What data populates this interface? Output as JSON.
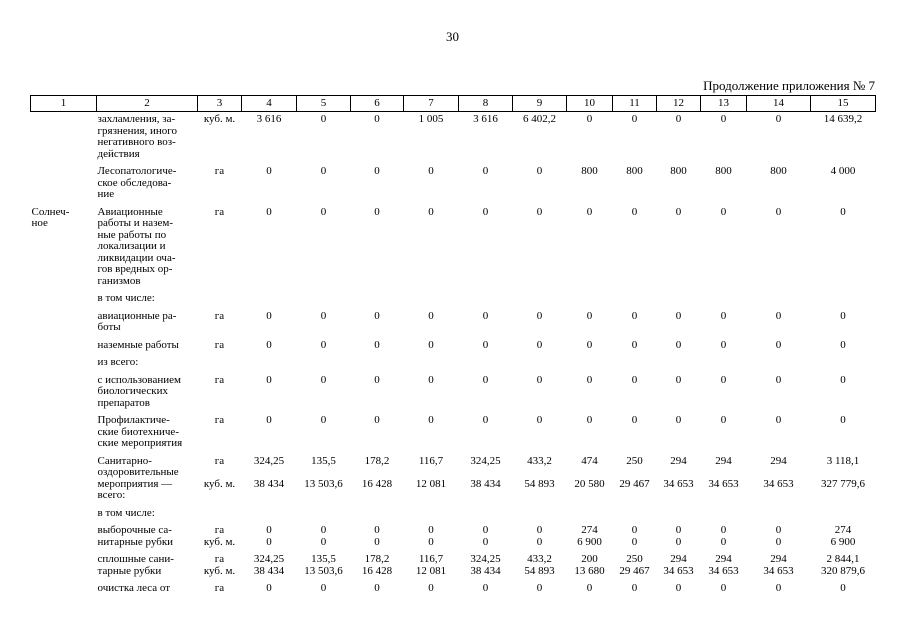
{
  "page": {
    "number": "30",
    "continuation": "Продолжение приложения № 7"
  },
  "table": {
    "header": [
      "1",
      "2",
      "3",
      "4",
      "5",
      "6",
      "7",
      "8",
      "9",
      "10",
      "11",
      "12",
      "13",
      "14",
      "15"
    ],
    "rows": [
      {
        "area": "",
        "label": "захламления, за-\nгрязнения, иного\nнегативного воз-\nдействия",
        "lines": [
          {
            "unit": "куб. м.",
            "values": [
              "3 616",
              "0",
              "0",
              "1 005",
              "3 616",
              "6 402,2",
              "0",
              "0",
              "0",
              "0",
              "0",
              "14 639,2"
            ]
          }
        ]
      },
      {
        "area": "",
        "label": "Лесопатологиче-\nское обследова-\nние",
        "lines": [
          {
            "unit": "га",
            "values": [
              "0",
              "0",
              "0",
              "0",
              "0",
              "0",
              "800",
              "800",
              "800",
              "800",
              "800",
              "4 000"
            ]
          }
        ]
      },
      {
        "area": "Солнеч-\nное",
        "label": "Авиационные\nработы и назем-\nные работы по\nлокализации и\nликвидации оча-\nгов вредных ор-\nганизмов",
        "lines": [
          {
            "unit": "га",
            "values": [
              "0",
              "0",
              "0",
              "0",
              "0",
              "0",
              "0",
              "0",
              "0",
              "0",
              "0",
              "0"
            ]
          }
        ]
      },
      {
        "area": "",
        "label": "в том числе:",
        "lines": []
      },
      {
        "area": "",
        "label": "авиационные ра-\nботы",
        "lines": [
          {
            "unit": "га",
            "values": [
              "0",
              "0",
              "0",
              "0",
              "0",
              "0",
              "0",
              "0",
              "0",
              "0",
              "0",
              "0"
            ]
          }
        ]
      },
      {
        "area": "",
        "label": "наземные работы",
        "lines": [
          {
            "unit": "га",
            "values": [
              "0",
              "0",
              "0",
              "0",
              "0",
              "0",
              "0",
              "0",
              "0",
              "0",
              "0",
              "0"
            ]
          }
        ]
      },
      {
        "area": "",
        "label": "из всего:",
        "lines": []
      },
      {
        "area": "",
        "label": "с использованием\nбиологических\nпрепаратов",
        "lines": [
          {
            "unit": "га",
            "values": [
              "0",
              "0",
              "0",
              "0",
              "0",
              "0",
              "0",
              "0",
              "0",
              "0",
              "0",
              "0"
            ]
          }
        ]
      },
      {
        "area": "",
        "label": "Профилактиче-\nские биотехниче-\nские мероприятия",
        "lines": [
          {
            "unit": "га",
            "values": [
              "0",
              "0",
              "0",
              "0",
              "0",
              "0",
              "0",
              "0",
              "0",
              "0",
              "0",
              "0"
            ]
          }
        ]
      },
      {
        "area": "",
        "label": "Санитарно-\nоздоровительные\nмероприятия —\nвсего:",
        "spread": true,
        "lines": [
          {
            "unit": "га",
            "values": [
              "324,25",
              "135,5",
              "178,2",
              "116,7",
              "324,25",
              "433,2",
              "474",
              "250",
              "294",
              "294",
              "294",
              "3 118,1"
            ]
          },
          {
            "unit": "куб. м.",
            "values": [
              "38 434",
              "13 503,6",
              "16 428",
              "12 081",
              "38 434",
              "54 893",
              "20 580",
              "29 467",
              "34 653",
              "34 653",
              "34 653",
              "327 779,6"
            ]
          }
        ]
      },
      {
        "area": "",
        "label": "в том числе:",
        "lines": []
      },
      {
        "area": "",
        "label": "выборочные са-\nнитарные рубки",
        "lines": [
          {
            "unit": "га",
            "values": [
              "0",
              "0",
              "0",
              "0",
              "0",
              "0",
              "274",
              "0",
              "0",
              "0",
              "0",
              "274"
            ]
          },
          {
            "unit": "куб. м.",
            "values": [
              "0",
              "0",
              "0",
              "0",
              "0",
              "0",
              "6 900",
              "0",
              "0",
              "0",
              "0",
              "6 900"
            ]
          }
        ]
      },
      {
        "area": "",
        "label": "сплошные сани-\nтарные рубки",
        "lines": [
          {
            "unit": "га",
            "values": [
              "324,25",
              "135,5",
              "178,2",
              "116,7",
              "324,25",
              "433,2",
              "200",
              "250",
              "294",
              "294",
              "294",
              "2 844,1"
            ]
          },
          {
            "unit": "куб. м.",
            "values": [
              "38 434",
              "13 503,6",
              "16 428",
              "12 081",
              "38 434",
              "54 893",
              "13 680",
              "29 467",
              "34 653",
              "34 653",
              "34 653",
              "320 879,6"
            ]
          }
        ]
      },
      {
        "area": "",
        "label": "очистка леса от",
        "lines": [
          {
            "unit": "га",
            "values": [
              "0",
              "0",
              "0",
              "0",
              "0",
              "0",
              "0",
              "0",
              "0",
              "0",
              "0",
              "0"
            ]
          }
        ]
      }
    ]
  }
}
